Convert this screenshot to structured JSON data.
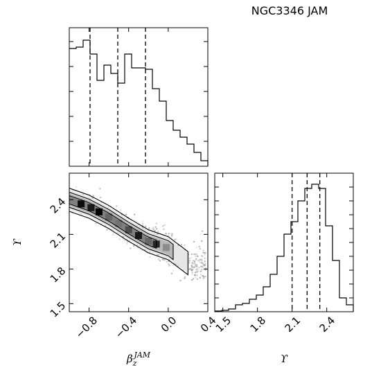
{
  "title": "NGC3346 JAM",
  "chart_data": [
    {
      "type": "histogram",
      "panel": "top-left",
      "x_parameter": "beta_z_JAM",
      "xlim": [
        -1.0,
        0.4
      ],
      "bin_edges": [
        -1.0,
        -0.93,
        -0.86,
        -0.79,
        -0.72,
        -0.65,
        -0.58,
        -0.51,
        -0.44,
        -0.37,
        -0.3,
        -0.23,
        -0.16,
        -0.09,
        -0.02,
        0.05,
        0.12,
        0.19,
        0.26,
        0.33,
        0.4
      ],
      "counts": [
        0.85,
        0.86,
        0.91,
        0.81,
        0.62,
        0.73,
        0.67,
        0.6,
        0.81,
        0.71,
        0.71,
        0.7,
        0.56,
        0.47,
        0.33,
        0.26,
        0.21,
        0.16,
        0.1,
        0.04
      ],
      "quantiles": [
        -0.79,
        -0.51,
        -0.23
      ]
    },
    {
      "type": "contour",
      "panel": "bottom-left",
      "xlabel": "β_z^JAM",
      "ylabel": "ϒ",
      "xlim": [
        -1.0,
        0.4
      ],
      "ylim": [
        1.43,
        2.63
      ],
      "x_ticks": [
        "−0.8",
        "−0.4",
        "0.0",
        "0.4"
      ],
      "x_tick_values": [
        -0.8,
        -0.4,
        0.0,
        0.4
      ],
      "y_ticks": [
        "1.5",
        "1.8",
        "2.1",
        "2.4"
      ],
      "y_tick_values": [
        1.5,
        1.8,
        2.1,
        2.4
      ],
      "density_ridge": {
        "x": [
          -1.0,
          -0.8,
          -0.6,
          -0.4,
          -0.2,
          0.0,
          0.2
        ],
        "y": [
          2.4,
          2.34,
          2.25,
          2.14,
          2.04,
          1.98,
          1.85
        ]
      }
    },
    {
      "type": "histogram",
      "panel": "bottom-right",
      "xlabel": "ϒ",
      "xlim": [
        1.43,
        2.63
      ],
      "bin_edges": [
        1.43,
        1.49,
        1.55,
        1.61,
        1.67,
        1.73,
        1.79,
        1.85,
        1.91,
        1.97,
        2.03,
        2.09,
        2.15,
        2.21,
        2.27,
        2.33,
        2.39,
        2.45,
        2.51,
        2.57,
        2.63
      ],
      "counts": [
        0.005,
        0.01,
        0.02,
        0.05,
        0.06,
        0.09,
        0.12,
        0.18,
        0.27,
        0.4,
        0.56,
        0.65,
        0.8,
        0.89,
        0.92,
        0.89,
        0.62,
        0.37,
        0.1,
        0.05
      ],
      "quantiles": [
        2.1,
        2.23,
        2.34
      ],
      "x_ticks": [
        "1.5",
        "1.8",
        "2.1",
        "2.4"
      ],
      "x_tick_values": [
        1.5,
        1.8,
        2.1,
        2.4
      ]
    }
  ]
}
